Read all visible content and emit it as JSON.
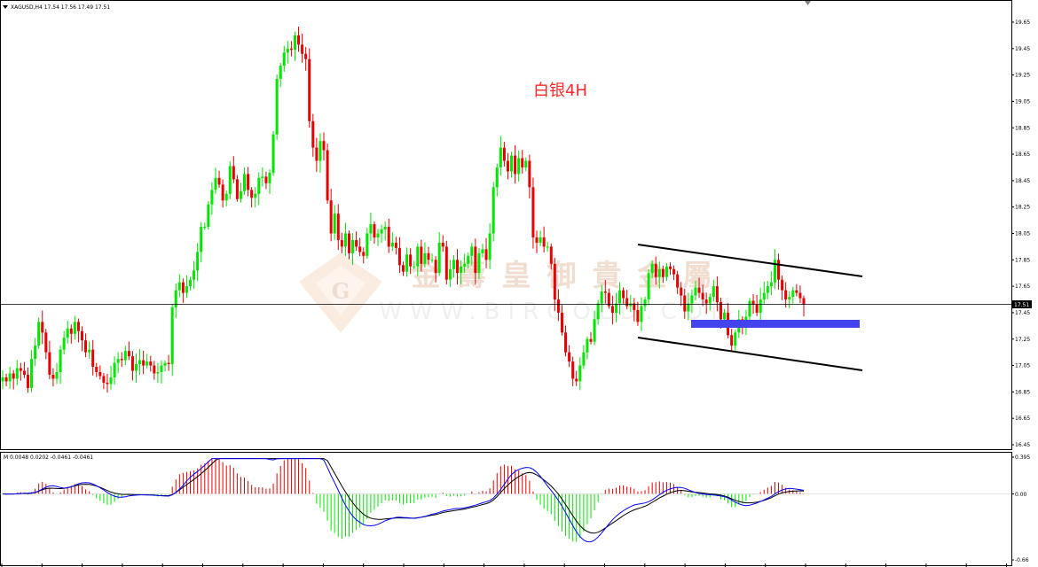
{
  "colors": {
    "bull": "#00e600",
    "bear": "#e60000",
    "macd_pos": "#e60000",
    "macd_neg": "#00e600",
    "signal_a": "#000000",
    "signal_b": "#0000ff",
    "support_zone": "#4444ee",
    "channel": "#000000",
    "crosshair": "#000000",
    "annotation": "#ff2a2a"
  },
  "header": {
    "label": "XAGUSD,H4  17.54 17.56 17.49 17.51"
  },
  "annotation": {
    "text": "白银4H"
  },
  "watermark": {
    "cn": "金壽皇御貴金屬",
    "en": "WWW.BIRGOLD.COM"
  },
  "price_axis": {
    "ticks": [
      "19.65",
      "19.45",
      "19.25",
      "19.05",
      "18.85",
      "18.65",
      "18.45",
      "18.25",
      "18.05",
      "17.85",
      "17.65",
      "17.45",
      "17.25",
      "17.05",
      "16.85",
      "16.65",
      "16.45"
    ],
    "current": "17.51"
  },
  "macd": {
    "label": "M 0.0048 0.0202 -0.0461 -0.0461",
    "axis_top": "0.395",
    "axis_mid": "0.00",
    "axis_bottom": "-0.66"
  },
  "chart_data": {
    "type": "candlestick",
    "symbol": "XAGUSD",
    "timeframe": "H4",
    "ylim": [
      16.4,
      19.75
    ],
    "last_price": 17.51,
    "closes": [
      16.96,
      16.93,
      16.99,
      16.95,
      17.03,
      17.01,
      16.98,
      16.88,
      17.1,
      17.2,
      17.38,
      17.3,
      17.15,
      16.98,
      16.95,
      17.0,
      17.17,
      17.26,
      17.33,
      17.29,
      17.38,
      17.31,
      17.24,
      17.15,
      17.17,
      17.04,
      17.0,
      16.97,
      16.92,
      16.91,
      16.96,
      17.07,
      17.1,
      17.09,
      17.16,
      17.12,
      17.01,
      17.06,
      17.09,
      17.05,
      17.08,
      17.05,
      16.99,
      17.0,
      17.05,
      17.07,
      17.06,
      17.49,
      17.62,
      17.68,
      17.6,
      17.65,
      17.7,
      17.77,
      17.91,
      18.1,
      18.1,
      18.27,
      18.38,
      18.47,
      18.42,
      18.3,
      18.35,
      18.56,
      18.46,
      18.31,
      18.37,
      18.5,
      18.38,
      18.32,
      18.35,
      18.47,
      18.48,
      18.43,
      18.51,
      18.8,
      19.22,
      19.32,
      19.42,
      19.45,
      19.44,
      19.55,
      19.48,
      19.41,
      19.37,
      18.9,
      18.7,
      18.6,
      18.75,
      18.68,
      18.3,
      18.05,
      18.2,
      18.0,
      17.95,
      18.05,
      17.9,
      18.0,
      17.95,
      17.91,
      17.88,
      18.05,
      18.12,
      18.02,
      18.05,
      18.08,
      18.1,
      17.95,
      17.98,
      17.94,
      17.81,
      17.76,
      17.89,
      17.8,
      17.8,
      17.95,
      17.82,
      17.9,
      17.85,
      17.85,
      17.75,
      17.98,
      17.95,
      17.7,
      17.78,
      17.85,
      17.75,
      17.8,
      17.82,
      17.88,
      17.95,
      17.75,
      17.9,
      17.93,
      17.85,
      18.05,
      18.4,
      18.55,
      18.7,
      18.6,
      18.52,
      18.64,
      18.5,
      18.62,
      18.55,
      18.6,
      18.4,
      18.02,
      17.98,
      18.02,
      17.95,
      17.95,
      17.82,
      17.55,
      17.45,
      17.3,
      17.15,
      17.08,
      16.95,
      16.93,
      17.05,
      17.15,
      17.25,
      17.23,
      17.4,
      17.52,
      17.61,
      17.6,
      17.5,
      17.45,
      17.52,
      17.62,
      17.56,
      17.5,
      17.52,
      17.47,
      17.38,
      17.5,
      17.55,
      17.75,
      17.82,
      17.72,
      17.78,
      17.72,
      17.8,
      17.78,
      17.74,
      17.64,
      17.58,
      17.46,
      17.52,
      17.58,
      17.64,
      17.6,
      17.55,
      17.52,
      17.57,
      17.65,
      17.53,
      17.4,
      17.45,
      17.28,
      17.2,
      17.3,
      17.4,
      17.34,
      17.42,
      17.54,
      17.51,
      17.45,
      17.55,
      17.6,
      17.65,
      17.68,
      17.85,
      17.7,
      17.62,
      17.55,
      17.57,
      17.62,
      17.6,
      17.56,
      17.51
    ]
  }
}
